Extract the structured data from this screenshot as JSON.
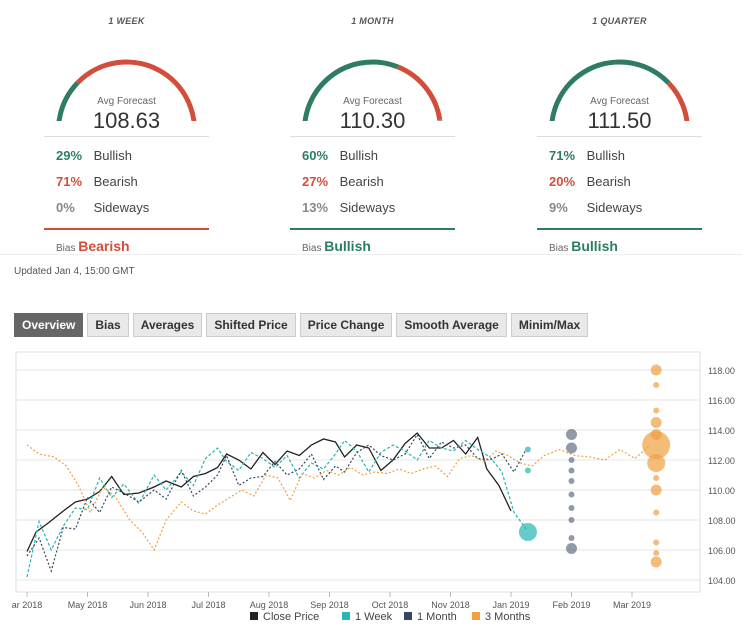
{
  "panels": [
    {
      "title": "1 WEEK",
      "avg_label": "Avg Forecast",
      "value": "108.63",
      "gauge": {
        "bullish": 29,
        "bearish": 71,
        "sideways": 0
      },
      "rows": [
        {
          "pct": "29%",
          "label": "Bullish",
          "color": "#2e7d62"
        },
        {
          "pct": "71%",
          "label": "Bearish",
          "color": "#d24e3a"
        },
        {
          "pct": "0%",
          "label": "Sideways",
          "color": "#888888"
        }
      ],
      "bias_label": "Bias",
      "bias": "Bearish",
      "bias_color": "#d24e3a"
    },
    {
      "title": "1 MONTH",
      "avg_label": "Avg Forecast",
      "value": "110.30",
      "gauge": {
        "bullish": 60,
        "bearish": 27,
        "sideways": 13
      },
      "rows": [
        {
          "pct": "60%",
          "label": "Bullish",
          "color": "#2e7d62"
        },
        {
          "pct": "27%",
          "label": "Bearish",
          "color": "#d24e3a"
        },
        {
          "pct": "13%",
          "label": "Sideways",
          "color": "#888888"
        }
      ],
      "bias_label": "Bias",
      "bias": "Bullish",
      "bias_color": "#2e7d62"
    },
    {
      "title": "1 QUARTER",
      "avg_label": "Avg Forecast",
      "value": "111.50",
      "gauge": {
        "bullish": 71,
        "bearish": 20,
        "sideways": 9
      },
      "rows": [
        {
          "pct": "71%",
          "label": "Bullish",
          "color": "#2e7d62"
        },
        {
          "pct": "20%",
          "label": "Bearish",
          "color": "#d24e3a"
        },
        {
          "pct": "9%",
          "label": "Sideways",
          "color": "#888888"
        }
      ],
      "bias_label": "Bias",
      "bias": "Bullish",
      "bias_color": "#2e7d62"
    }
  ],
  "updated": "Updated Jan 4, 15:00 GMT",
  "tabs": [
    "Overview",
    "Bias",
    "Averages",
    "Shifted Price",
    "Price Change",
    "Smooth Average",
    "Minim/Max"
  ],
  "active_tab": "Overview",
  "colors": {
    "close": "#222222",
    "week": "#26b5b5",
    "month": "#34495e",
    "quarter": "#f0a040"
  },
  "chart_data": {
    "type": "line",
    "y_ticks": [
      "104.00",
      "106.00",
      "108.00",
      "110.00",
      "112.00",
      "114.00",
      "116.00",
      "118.00"
    ],
    "ylim": [
      103.2,
      119.2
    ],
    "x_ticks": [
      {
        "label": "ar 2018",
        "m": 0
      },
      {
        "label": "May 2018",
        "m": 1
      },
      {
        "label": "Jun 2018",
        "m": 2
      },
      {
        "label": "Jul 2018",
        "m": 3
      },
      {
        "label": "Aug 2018",
        "m": 4
      },
      {
        "label": "Sep 2018",
        "m": 5
      },
      {
        "label": "Oct 2018",
        "m": 6
      },
      {
        "label": "Nov 2018",
        "m": 7
      },
      {
        "label": "Jan 2019",
        "m": 8
      },
      {
        "label": "Feb 2019",
        "m": 9
      },
      {
        "label": "Mar 2019",
        "m": 10
      }
    ],
    "series": [
      {
        "name": "Close Price",
        "style": "solid",
        "points": [
          [
            0,
            105.9
          ],
          [
            0.15,
            107.2
          ],
          [
            0.35,
            107.8
          ],
          [
            0.6,
            108.6
          ],
          [
            0.8,
            109.2
          ],
          [
            1.0,
            109.4
          ],
          [
            1.2,
            109.9
          ],
          [
            1.4,
            110.9
          ],
          [
            1.6,
            109.7
          ],
          [
            1.85,
            109.8
          ],
          [
            2.1,
            110.2
          ],
          [
            2.3,
            110.6
          ],
          [
            2.55,
            110.2
          ],
          [
            2.75,
            110.9
          ],
          [
            2.95,
            111.1
          ],
          [
            3.15,
            111.5
          ],
          [
            3.3,
            112.4
          ],
          [
            3.5,
            112.0
          ],
          [
            3.7,
            111.4
          ],
          [
            3.9,
            112.5
          ],
          [
            4.1,
            111.7
          ],
          [
            4.3,
            112.6
          ],
          [
            4.5,
            112.3
          ],
          [
            4.7,
            113.0
          ],
          [
            4.9,
            113.4
          ],
          [
            5.1,
            113.2
          ],
          [
            5.25,
            112.2
          ],
          [
            5.45,
            113.0
          ],
          [
            5.65,
            112.8
          ],
          [
            5.85,
            111.3
          ],
          [
            6.05,
            112.0
          ],
          [
            6.25,
            113.1
          ],
          [
            6.45,
            113.8
          ],
          [
            6.65,
            112.8
          ],
          [
            6.85,
            112.8
          ],
          [
            7.05,
            113.3
          ],
          [
            7.25,
            112.4
          ],
          [
            7.45,
            113.5
          ],
          [
            7.6,
            111.4
          ],
          [
            7.8,
            110.3
          ],
          [
            8.0,
            108.6
          ]
        ]
      },
      {
        "name": "1 Week",
        "style": "dashed",
        "points": [
          [
            0,
            104.2
          ],
          [
            0.2,
            107.9
          ],
          [
            0.4,
            106.0
          ],
          [
            0.6,
            107.6
          ],
          [
            0.8,
            108.8
          ],
          [
            1.0,
            108.7
          ],
          [
            1.2,
            110.8
          ],
          [
            1.4,
            109.5
          ],
          [
            1.6,
            110.4
          ],
          [
            1.85,
            109.1
          ],
          [
            2.1,
            111.0
          ],
          [
            2.3,
            110.0
          ],
          [
            2.55,
            111.2
          ],
          [
            2.75,
            110.3
          ],
          [
            2.95,
            112.1
          ],
          [
            3.15,
            112.8
          ],
          [
            3.3,
            111.9
          ],
          [
            3.5,
            111.3
          ],
          [
            3.7,
            112.5
          ],
          [
            3.9,
            112.1
          ],
          [
            4.1,
            111.5
          ],
          [
            4.3,
            112.3
          ],
          [
            4.5,
            110.8
          ],
          [
            4.7,
            111.8
          ],
          [
            4.9,
            111.4
          ],
          [
            5.1,
            112.4
          ],
          [
            5.25,
            113.3
          ],
          [
            5.45,
            112.6
          ],
          [
            5.65,
            111.2
          ],
          [
            5.85,
            112.5
          ],
          [
            6.05,
            113.0
          ],
          [
            6.25,
            112.6
          ],
          [
            6.45,
            112.0
          ],
          [
            6.65,
            113.3
          ],
          [
            6.85,
            112.8
          ],
          [
            7.05,
            112.6
          ],
          [
            7.25,
            113.3
          ],
          [
            7.45,
            112.7
          ],
          [
            7.65,
            112.2
          ],
          [
            7.85,
            111.2
          ],
          [
            8.05,
            108.5
          ],
          [
            8.25,
            107.4
          ]
        ]
      },
      {
        "name": "1 Month",
        "style": "dotted",
        "points": [
          [
            0,
            105.6
          ],
          [
            0.2,
            106.8
          ],
          [
            0.4,
            104.6
          ],
          [
            0.6,
            107.5
          ],
          [
            0.8,
            107.4
          ],
          [
            1.0,
            109.5
          ],
          [
            1.2,
            108.5
          ],
          [
            1.4,
            110.2
          ],
          [
            1.6,
            109.8
          ],
          [
            1.85,
            109.2
          ],
          [
            2.1,
            110.0
          ],
          [
            2.3,
            109.4
          ],
          [
            2.55,
            111.3
          ],
          [
            2.75,
            109.6
          ],
          [
            2.95,
            110.2
          ],
          [
            3.15,
            111.0
          ],
          [
            3.3,
            112.3
          ],
          [
            3.5,
            110.3
          ],
          [
            3.7,
            110.8
          ],
          [
            3.9,
            110.9
          ],
          [
            4.1,
            111.9
          ],
          [
            4.3,
            111.0
          ],
          [
            4.5,
            111.4
          ],
          [
            4.7,
            112.4
          ],
          [
            4.9,
            110.7
          ],
          [
            5.1,
            111.6
          ],
          [
            5.25,
            111.2
          ],
          [
            5.45,
            112.5
          ],
          [
            5.65,
            113.0
          ],
          [
            5.85,
            112.3
          ],
          [
            6.05,
            112.0
          ],
          [
            6.25,
            112.4
          ],
          [
            6.45,
            113.7
          ],
          [
            6.65,
            112.1
          ],
          [
            6.85,
            113.2
          ],
          [
            7.05,
            112.8
          ],
          [
            7.25,
            113.0
          ],
          [
            7.45,
            112.1
          ],
          [
            7.65,
            112.0
          ],
          [
            7.85,
            112.4
          ],
          [
            8.05,
            111.2
          ],
          [
            8.25,
            112.7
          ]
        ]
      },
      {
        "name": "3 Months",
        "style": "dotted",
        "points": [
          [
            0,
            113.0
          ],
          [
            0.2,
            112.4
          ],
          [
            0.45,
            112.2
          ],
          [
            0.65,
            111.6
          ],
          [
            0.85,
            110.3
          ],
          [
            1.05,
            108.5
          ],
          [
            1.25,
            110.2
          ],
          [
            1.45,
            109.6
          ],
          [
            1.7,
            108.0
          ],
          [
            1.9,
            107.2
          ],
          [
            2.1,
            106.0
          ],
          [
            2.3,
            108.0
          ],
          [
            2.55,
            109.2
          ],
          [
            2.75,
            108.6
          ],
          [
            2.95,
            108.4
          ],
          [
            3.15,
            109.0
          ],
          [
            3.35,
            109.5
          ],
          [
            3.55,
            110.0
          ],
          [
            3.75,
            109.6
          ],
          [
            3.95,
            111.0
          ],
          [
            4.15,
            110.8
          ],
          [
            4.35,
            109.3
          ],
          [
            4.55,
            111.1
          ],
          [
            4.75,
            110.8
          ],
          [
            4.95,
            111.3
          ],
          [
            5.15,
            111.0
          ],
          [
            5.35,
            111.5
          ],
          [
            5.55,
            111.0
          ],
          [
            5.75,
            111.2
          ],
          [
            5.95,
            111.1
          ],
          [
            6.15,
            111.4
          ],
          [
            6.35,
            111.1
          ],
          [
            6.55,
            111.4
          ],
          [
            6.75,
            111.6
          ],
          [
            6.95,
            110.9
          ],
          [
            7.15,
            112.1
          ],
          [
            7.35,
            112.3
          ],
          [
            7.55,
            111.9
          ],
          [
            7.75,
            112.6
          ],
          [
            7.95,
            112.3
          ],
          [
            8.15,
            111.8
          ],
          [
            8.35,
            111.6
          ],
          [
            8.55,
            112.3
          ],
          [
            8.8,
            112.7
          ],
          [
            9.05,
            112.3
          ],
          [
            9.3,
            112.2
          ],
          [
            9.55,
            112.0
          ],
          [
            9.8,
            112.7
          ],
          [
            10.05,
            112.1
          ],
          [
            10.3,
            113.0
          ]
        ]
      }
    ],
    "forecast_points": [
      {
        "series": "1 Week",
        "m": 8.28,
        "y": 112.7,
        "size": 1
      },
      {
        "series": "1 Week",
        "m": 8.28,
        "y": 111.3,
        "size": 1
      },
      {
        "series": "1 Week",
        "m": 8.28,
        "y": 107.2,
        "size": 3
      },
      {
        "series": "1 Month",
        "m": 9.0,
        "y": 113.7,
        "size": 2
      },
      {
        "series": "1 Month",
        "m": 9.0,
        "y": 112.8,
        "size": 2
      },
      {
        "series": "1 Month",
        "m": 9.0,
        "y": 112.0,
        "size": 1
      },
      {
        "series": "1 Month",
        "m": 9.0,
        "y": 111.3,
        "size": 1
      },
      {
        "series": "1 Month",
        "m": 9.0,
        "y": 110.6,
        "size": 1
      },
      {
        "series": "1 Month",
        "m": 9.0,
        "y": 109.7,
        "size": 1
      },
      {
        "series": "1 Month",
        "m": 9.0,
        "y": 108.8,
        "size": 1
      },
      {
        "series": "1 Month",
        "m": 9.0,
        "y": 108.0,
        "size": 1
      },
      {
        "series": "1 Month",
        "m": 9.0,
        "y": 106.8,
        "size": 1
      },
      {
        "series": "1 Month",
        "m": 9.0,
        "y": 106.1,
        "size": 2
      },
      {
        "series": "3 Months",
        "m": 10.4,
        "y": 118.0,
        "size": 2
      },
      {
        "series": "3 Months",
        "m": 10.4,
        "y": 117.0,
        "size": 1
      },
      {
        "series": "3 Months",
        "m": 10.4,
        "y": 115.3,
        "size": 1
      },
      {
        "series": "3 Months",
        "m": 10.4,
        "y": 114.5,
        "size": 2
      },
      {
        "series": "3 Months",
        "m": 10.4,
        "y": 113.7,
        "size": 2
      },
      {
        "series": "3 Months",
        "m": 10.4,
        "y": 113.0,
        "size": 4
      },
      {
        "series": "3 Months",
        "m": 10.4,
        "y": 111.8,
        "size": 3
      },
      {
        "series": "3 Months",
        "m": 10.4,
        "y": 110.8,
        "size": 1
      },
      {
        "series": "3 Months",
        "m": 10.4,
        "y": 110.0,
        "size": 2
      },
      {
        "series": "3 Months",
        "m": 10.4,
        "y": 108.5,
        "size": 1
      },
      {
        "series": "3 Months",
        "m": 10.4,
        "y": 106.5,
        "size": 1
      },
      {
        "series": "3 Months",
        "m": 10.4,
        "y": 105.8,
        "size": 1
      },
      {
        "series": "3 Months",
        "m": 10.4,
        "y": 105.2,
        "size": 2
      }
    ],
    "legend": [
      "Close Price",
      "1 Week",
      "1 Month",
      "3 Months"
    ]
  }
}
